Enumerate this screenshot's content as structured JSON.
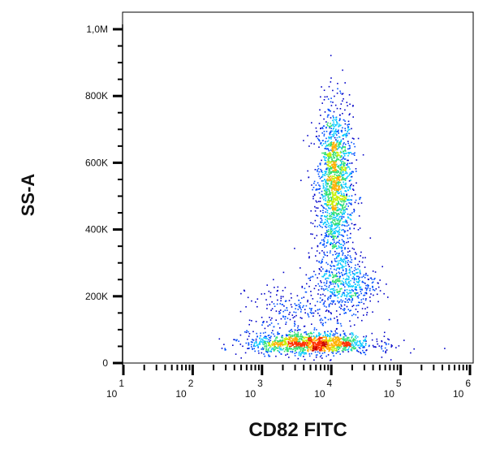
{
  "chart_data": {
    "type": "scatter",
    "style": "density dot plot (pseudocolor)",
    "xlabel": "CD82 FITC",
    "ylabel": "SS-A",
    "x_scale": "log",
    "xlim": [
      10,
      1000000
    ],
    "ylim": [
      0,
      1000000
    ],
    "x_ticks": [
      {
        "base": "10",
        "exp": "1"
      },
      {
        "base": "10",
        "exp": "2"
      },
      {
        "base": "10",
        "exp": "3"
      },
      {
        "base": "10",
        "exp": "4"
      },
      {
        "base": "10",
        "exp": "5"
      },
      {
        "base": "10",
        "exp": "6"
      }
    ],
    "y_ticks": [
      "0",
      "200K",
      "400K",
      "600K",
      "800K",
      "1,0M"
    ],
    "y_tick_values": [
      0,
      200000,
      400000,
      600000,
      800000,
      1000000
    ],
    "grid": false,
    "populations": [
      {
        "x_center": 11000,
        "y_center": 530000,
        "x_spread_decades": 0.13,
        "y_spread": 120000,
        "count": 1600
      },
      {
        "x_center": 16000,
        "y_center": 240000,
        "x_spread_decades": 0.22,
        "y_spread": 50000,
        "count": 500
      },
      {
        "x_center": 5000,
        "y_center": 60000,
        "x_spread_decades": 0.45,
        "y_spread": 16000,
        "count": 1300
      },
      {
        "x_center": 3000,
        "y_center": 150000,
        "x_spread_decades": 0.35,
        "y_spread": 50000,
        "count": 250
      }
    ],
    "colormap": [
      "#0000c8",
      "#0050ff",
      "#00c8ff",
      "#30e070",
      "#c8f000",
      "#ffb000",
      "#ff3000",
      "#c80000"
    ]
  }
}
